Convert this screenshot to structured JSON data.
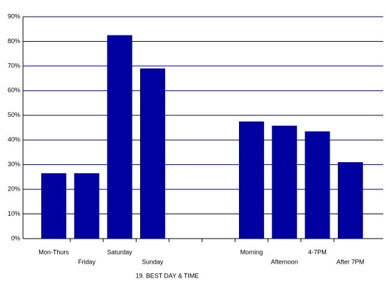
{
  "chart_data": {
    "type": "bar",
    "title": "19. BEST DAY & TIME",
    "categories": [
      "Mon-Thurs",
      "Friday",
      "Saturday",
      "Sunday",
      null,
      null,
      "Morning",
      "Afternoon",
      "4-7PM",
      "After 7PM"
    ],
    "values": [
      26.5,
      26.5,
      82.5,
      69,
      null,
      null,
      47.5,
      45.8,
      43.5,
      31
    ],
    "color": "#0000a0",
    "ylim": [
      0,
      90
    ],
    "yticks": [
      {
        "value": 0,
        "label": "0%"
      },
      {
        "value": 10,
        "label": "10%"
      },
      {
        "value": 20,
        "label": "20%"
      },
      {
        "value": 30,
        "label": "30%"
      },
      {
        "value": 40,
        "label": "40%"
      },
      {
        "value": 50,
        "label": "50%"
      },
      {
        "value": 60,
        "label": "60%"
      },
      {
        "value": 70,
        "label": "70%"
      },
      {
        "value": 80,
        "label": "80%"
      },
      {
        "value": 90,
        "label": "90%"
      }
    ],
    "grid": true
  }
}
